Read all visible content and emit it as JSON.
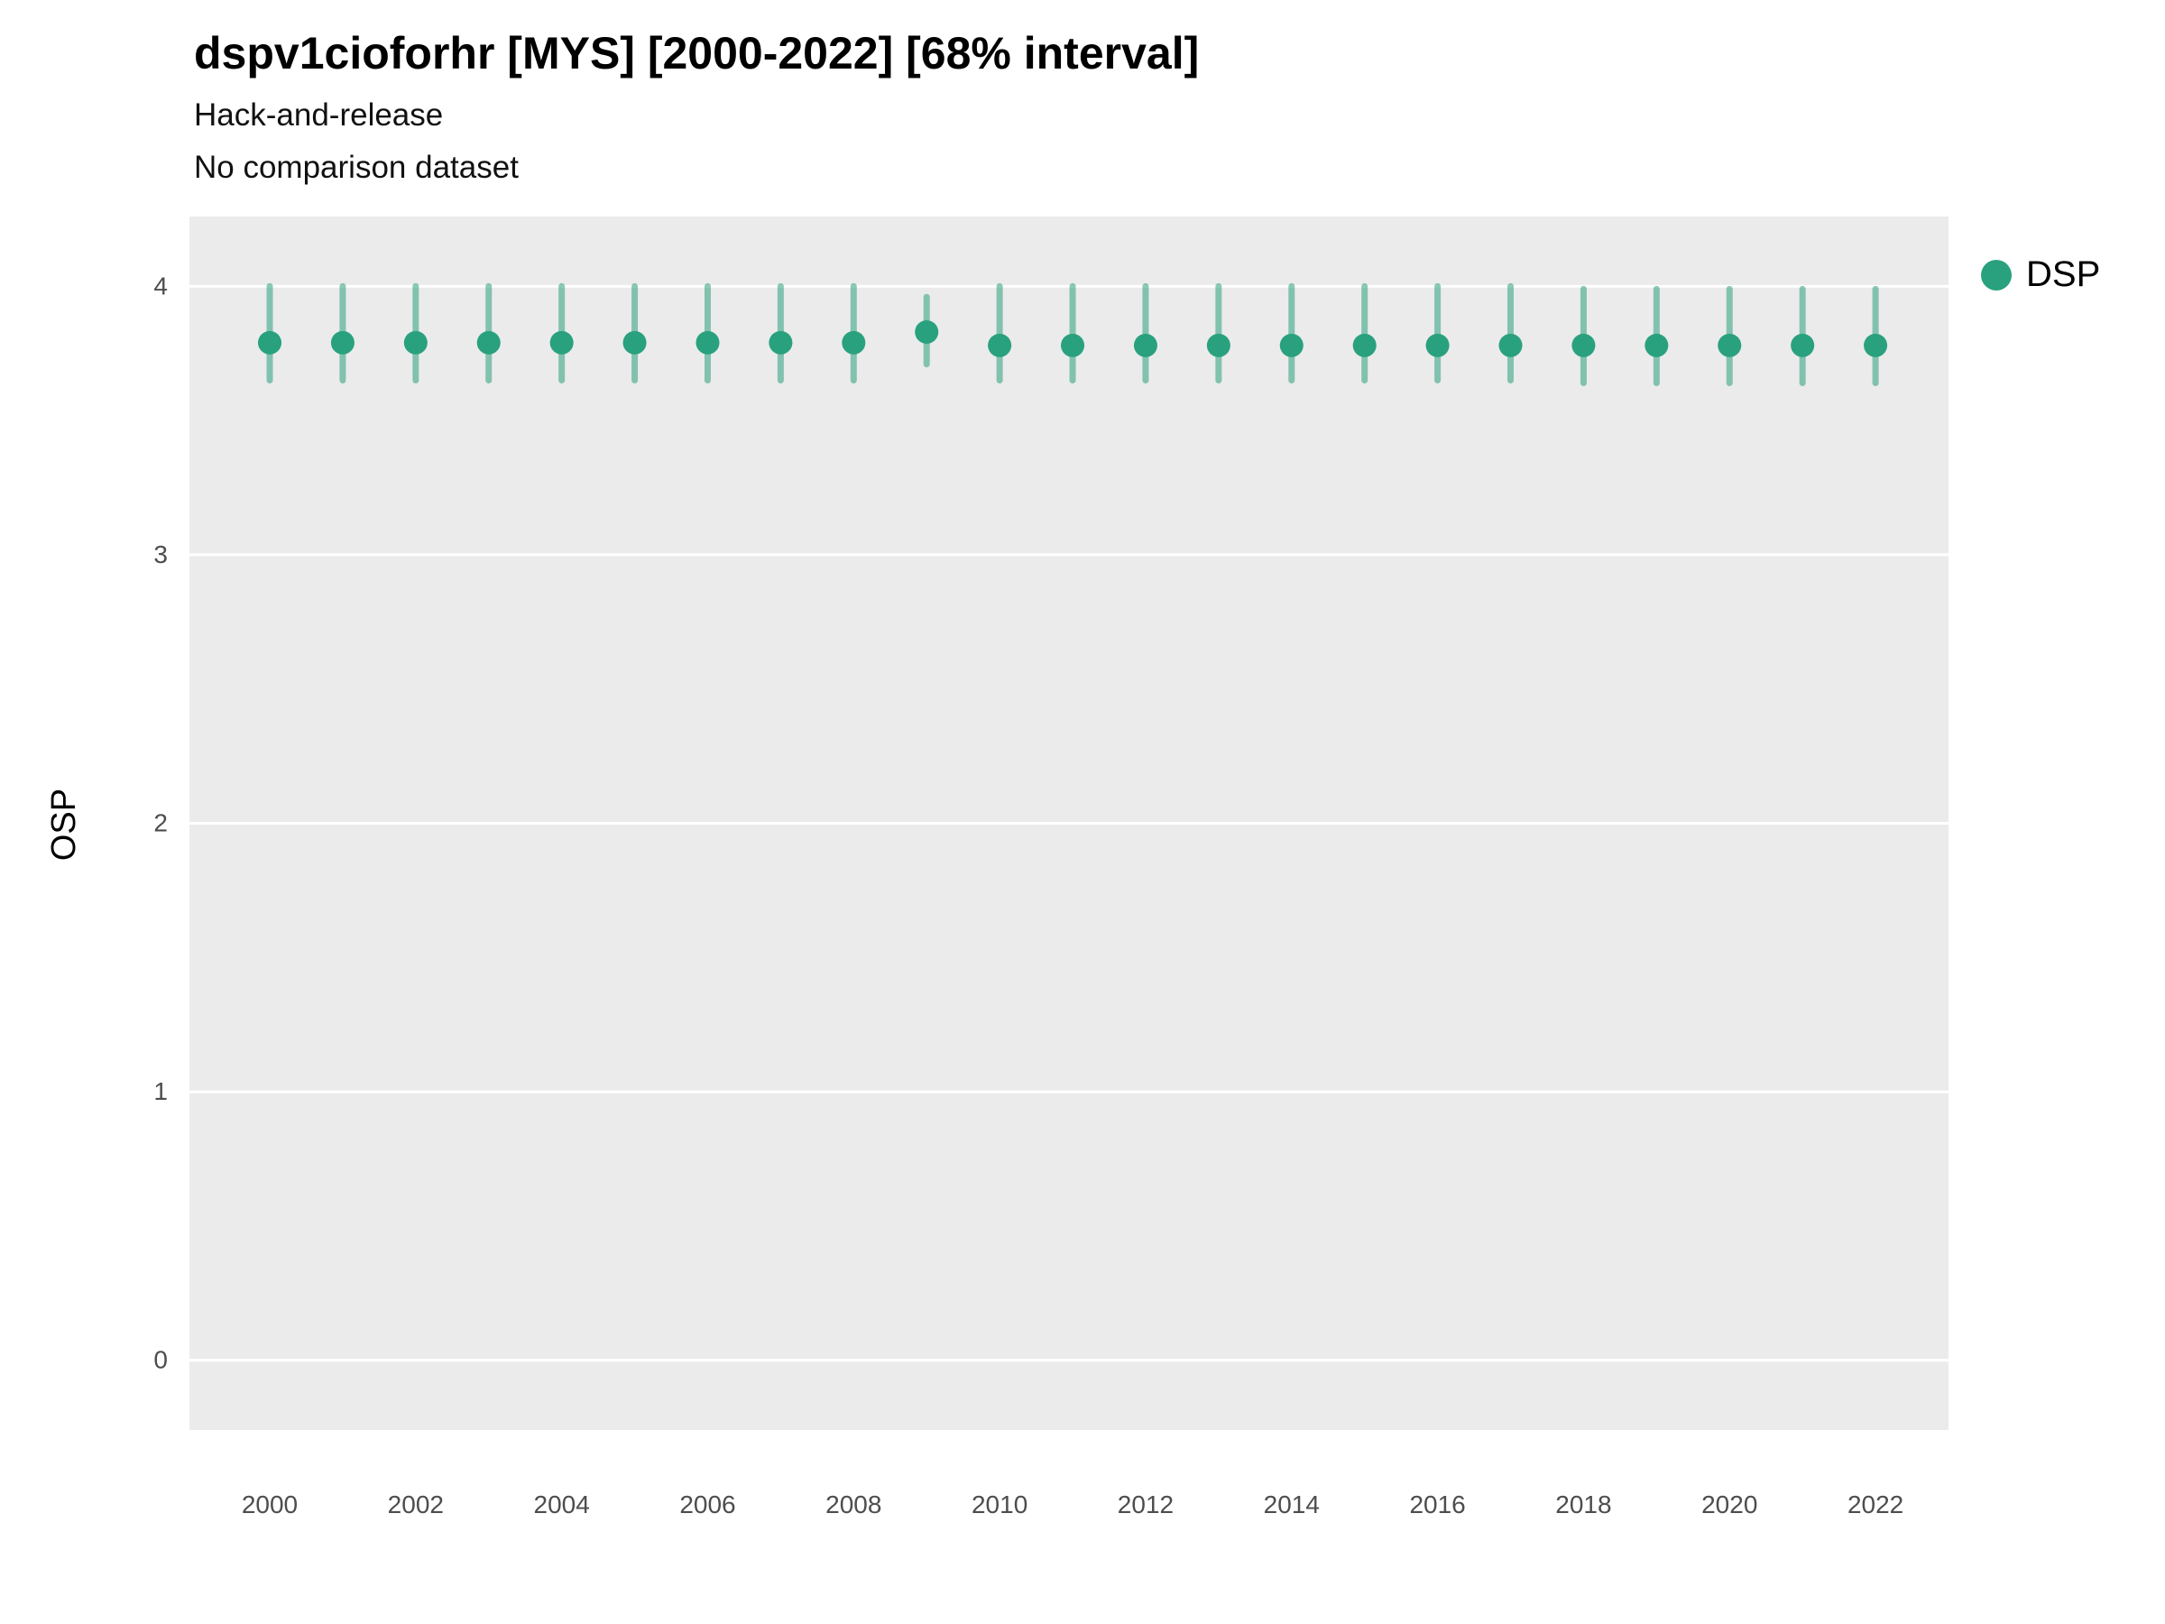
{
  "header": {
    "title": "dspv1cioforhr [MYS] [2000-2022] [68% interval]",
    "subtitle1": "Hack-and-release",
    "subtitle2": "No comparison dataset"
  },
  "legend": {
    "label": "DSP"
  },
  "colors": {
    "point": "#2aa17e",
    "interval": "#2aa17e",
    "panel": "#ebebeb",
    "grid": "#ffffff",
    "tick_text": "#4d4d4d"
  },
  "chart_data": {
    "type": "scatter",
    "subtype": "pointrange",
    "title": "dspv1cioforhr [MYS] [2000-2022] [68% interval]",
    "xlabel": "",
    "ylabel": "OSP",
    "x": [
      2000,
      2001,
      2002,
      2003,
      2004,
      2005,
      2006,
      2007,
      2008,
      2009,
      2010,
      2011,
      2012,
      2013,
      2014,
      2015,
      2016,
      2017,
      2018,
      2019,
      2020,
      2021,
      2022
    ],
    "series": [
      {
        "name": "DSP",
        "values": [
          3.79,
          3.79,
          3.79,
          3.79,
          3.79,
          3.79,
          3.79,
          3.79,
          3.79,
          3.83,
          3.78,
          3.78,
          3.78,
          3.78,
          3.78,
          3.78,
          3.78,
          3.78,
          3.78,
          3.78,
          3.78,
          3.78,
          3.78
        ],
        "lower": [
          3.65,
          3.65,
          3.65,
          3.65,
          3.65,
          3.65,
          3.65,
          3.65,
          3.65,
          3.71,
          3.65,
          3.65,
          3.65,
          3.65,
          3.65,
          3.65,
          3.65,
          3.65,
          3.64,
          3.64,
          3.64,
          3.64,
          3.64
        ],
        "upper": [
          4.0,
          4.0,
          4.0,
          4.0,
          4.0,
          4.0,
          4.0,
          4.0,
          4.0,
          3.96,
          4.0,
          4.0,
          4.0,
          4.0,
          4.0,
          4.0,
          4.0,
          4.0,
          3.99,
          3.99,
          3.99,
          3.99,
          3.99
        ]
      }
    ],
    "xticks": [
      2000,
      2002,
      2004,
      2006,
      2008,
      2010,
      2012,
      2014,
      2016,
      2018,
      2020,
      2022
    ],
    "yticks": [
      4,
      3,
      2,
      1,
      0
    ],
    "xlim": [
      1998.9,
      2023.0
    ],
    "ylim": [
      -0.26,
      4.26
    ],
    "grid": true,
    "legend_position": "right"
  }
}
